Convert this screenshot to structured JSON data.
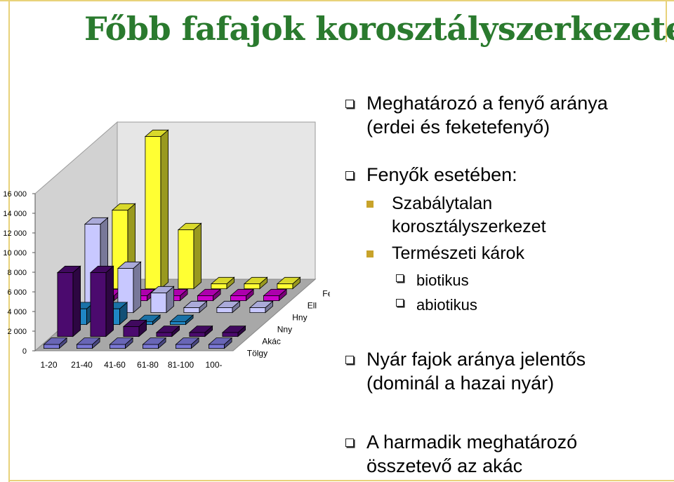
{
  "slide": {
    "title": "Főbb fafajok korosztályszerkezete"
  },
  "bullets": {
    "b1_line1": "Meghatározó a fenyő aránya",
    "b1_line2": "(erdei és feketefenyő)",
    "b2": "Fenyők esetében:",
    "b2_sub1_line1": "Szabálytalan",
    "b2_sub1_line2": "korosztályszerkezet",
    "b2_sub2": "Természeti károk",
    "b2_sub2_sub1": "biotikus",
    "b2_sub2_sub2": "abiotikus",
    "b3_line1": "Nyár fajok aránya jelentős",
    "b3_line2": "(dominál a hazai nyár)",
    "b4_line1": "A harmadik meghatározó",
    "b4_line2": "összetevő az akác"
  },
  "chart_data": {
    "type": "bar",
    "categories": [
      "1-20",
      "21-40",
      "41-60",
      "61-80",
      "81-100",
      "100-"
    ],
    "yticks": [
      "0",
      "2 000",
      "4 000",
      "6 000",
      "8 000",
      "10 000",
      "12 000",
      "14 000",
      "16 000"
    ],
    "ylim": [
      0,
      16000
    ],
    "series": [
      {
        "name": "Tölgy",
        "color": "#7b78d6",
        "values": [
          400,
          400,
          400,
          400,
          400,
          400
        ]
      },
      {
        "name": "Akác",
        "color": "#4b0a6e",
        "values": [
          6500,
          6500,
          1000,
          400,
          400,
          400
        ]
      },
      {
        "name": "Nny",
        "color": "#1f86c4",
        "values": [
          1600,
          1600,
          300,
          300,
          0,
          0
        ]
      },
      {
        "name": "Hny",
        "color": "#c8c8ff",
        "values": [
          9000,
          4500,
          2000,
          500,
          500,
          500
        ]
      },
      {
        "name": "Ell",
        "color": "#cc00cc",
        "values": [
          500,
          500,
          500,
          500,
          500,
          500
        ]
      },
      {
        "name": "Fenyő",
        "color": "#ffff33",
        "values": [
          8000,
          15500,
          6000,
          500,
          500,
          500
        ]
      }
    ]
  }
}
